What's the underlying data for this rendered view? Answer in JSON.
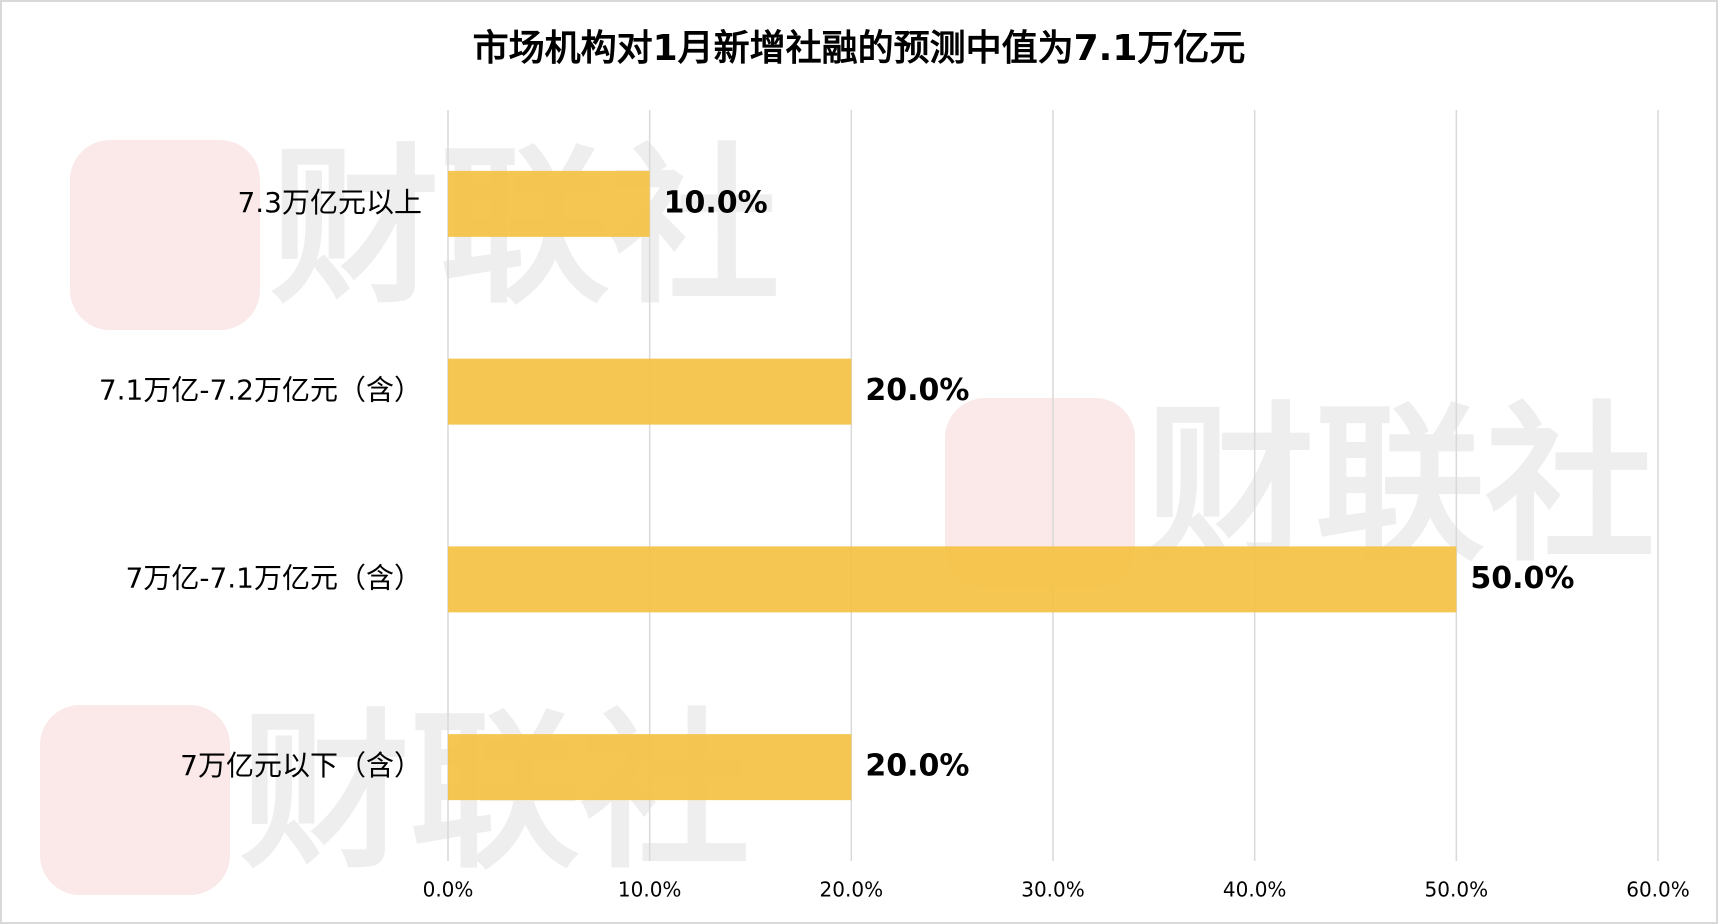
{
  "chart_data": {
    "type": "barh",
    "title": "市场机构对1月新增社融的预测中值为7.1万亿元",
    "watermark": "财联社",
    "categories": [
      "7.3万亿元以上",
      "7.1万亿-7.2万亿元（含）",
      "7万亿-7.1万亿元（含）",
      "7万亿元以下（含）"
    ],
    "values": [
      10,
      20,
      50,
      20
    ],
    "value_labels": [
      "10.0%",
      "20.0%",
      "50.0%",
      "20.0%"
    ],
    "color": "#F4C142",
    "xlim": [
      0,
      60
    ],
    "xticks": [
      {
        "value": 0,
        "label": "0.0%"
      },
      {
        "value": 10,
        "label": "10.0%"
      },
      {
        "value": 20,
        "label": "20.0%"
      },
      {
        "value": 30,
        "label": "30.0%"
      },
      {
        "value": 40,
        "label": "40.0%"
      },
      {
        "value": 50,
        "label": "50.0%"
      },
      {
        "value": 60,
        "label": "60.0%"
      }
    ],
    "grid": true
  }
}
